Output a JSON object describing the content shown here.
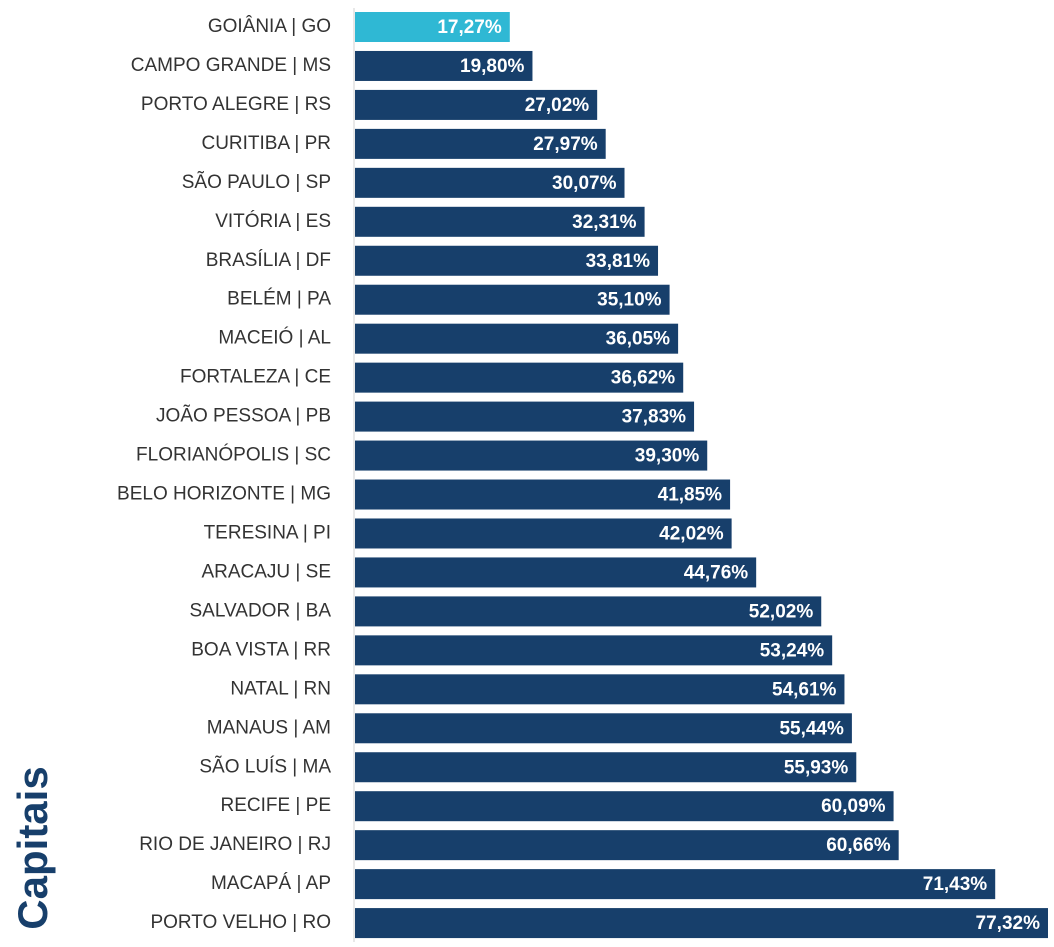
{
  "chart_data": {
    "type": "barh",
    "y_label": "Capitais",
    "categories": [
      "GOIÂNIA | GO",
      "CAMPO GRANDE | MS",
      "PORTO ALEGRE | RS",
      "CURITIBA | PR",
      "SÃO PAULO | SP",
      "VITÓRIA | ES",
      "BRASÍLIA | DF",
      "BELÉM | PA",
      "MACEIÓ | AL",
      "FORTALEZA | CE",
      "JOÃO PESSOA | PB",
      "FLORIANÓPOLIS | SC",
      "BELO HORIZONTE | MG",
      "TERESINA | PI",
      "ARACAJU | SE",
      "SALVADOR | BA",
      "BOA VISTA | RR",
      "NATAL | RN",
      "MANAUS | AM",
      "SÃO LUÍS | MA",
      "RECIFE | PE",
      "RIO DE JANEIRO | RJ",
      "MACAPÁ | AP",
      "PORTO VELHO | RO"
    ],
    "values": [
      17.27,
      19.8,
      27.02,
      27.97,
      30.07,
      32.31,
      33.81,
      35.1,
      36.05,
      36.62,
      37.83,
      39.3,
      41.85,
      42.02,
      44.76,
      52.02,
      53.24,
      54.61,
      55.44,
      55.93,
      60.09,
      60.66,
      71.43,
      77.32
    ],
    "value_labels": [
      "17,27%",
      "19,80%",
      "27,02%",
      "27,97%",
      "30,07%",
      "32,31%",
      "33,81%",
      "35,10%",
      "36,05%",
      "36,62%",
      "37,83%",
      "39,30%",
      "41,85%",
      "42,02%",
      "44,76%",
      "52,02%",
      "53,24%",
      "54,61%",
      "55,44%",
      "55,93%",
      "60,09%",
      "60,66%",
      "71,43%",
      "77,32%"
    ],
    "colors": [
      "#2fb8d4",
      "#173f6b",
      "#173f6b",
      "#173f6b",
      "#173f6b",
      "#173f6b",
      "#173f6b",
      "#173f6b",
      "#173f6b",
      "#173f6b",
      "#173f6b",
      "#173f6b",
      "#173f6b",
      "#173f6b",
      "#173f6b",
      "#173f6b",
      "#173f6b",
      "#173f6b",
      "#173f6b",
      "#173f6b",
      "#173f6b",
      "#173f6b",
      "#173f6b",
      "#173f6b"
    ]
  }
}
